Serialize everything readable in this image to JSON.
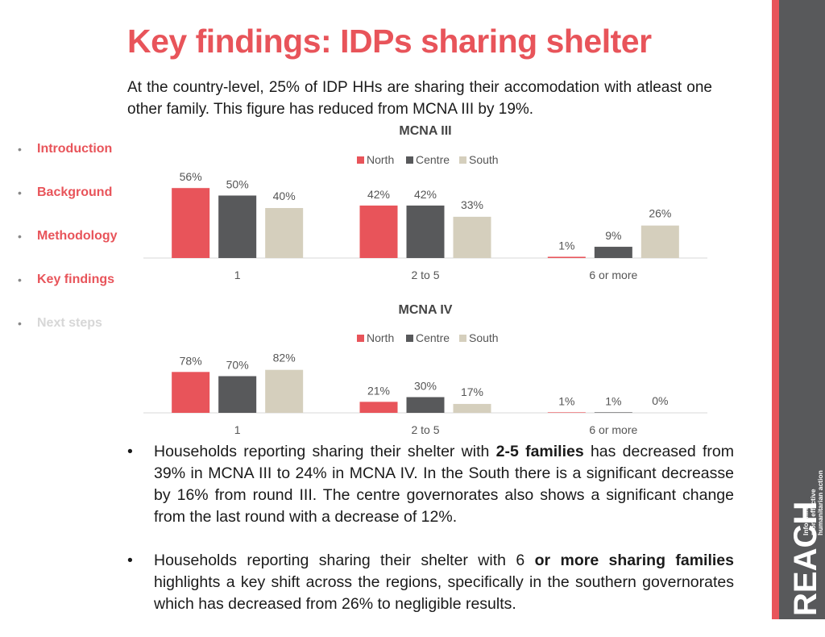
{
  "title": "Key findings: IDPs sharing shelter",
  "intro": "At the country-level, 25% of IDP HHs are sharing their accomodation with atleast one other family.  This figure has reduced from MCNA III by 19%.",
  "nav": {
    "items": [
      {
        "label": "Introduction"
      },
      {
        "label": "Background"
      },
      {
        "label": "Methodology"
      },
      {
        "label": "Key findings"
      },
      {
        "label": "Next steps"
      }
    ],
    "bullet": "•"
  },
  "colors": {
    "accent": "#e8545a",
    "north": "#e8545a",
    "centre": "#58595b",
    "south": "#d5cfbd",
    "sidebar": "#58595b"
  },
  "chart_data": [
    {
      "type": "bar",
      "title": "MCNA III",
      "categories": [
        "1",
        "2 to 5",
        "6 or more"
      ],
      "series": [
        {
          "name": "North",
          "values": [
            56,
            42,
            1
          ],
          "labels": [
            "56%",
            "42%",
            "1%"
          ]
        },
        {
          "name": "Centre",
          "values": [
            50,
            42,
            9
          ],
          "labels": [
            "50%",
            "42%",
            "9%"
          ]
        },
        {
          "name": "South",
          "values": [
            40,
            33,
            26
          ],
          "labels": [
            "40%",
            "33%",
            "26%"
          ]
        }
      ],
      "legend": "top",
      "grid": false,
      "ylim": [
        0,
        100
      ]
    },
    {
      "type": "bar",
      "title": "MCNA IV",
      "categories": [
        "1",
        "2 to 5",
        "6 or more"
      ],
      "series": [
        {
          "name": "North",
          "values": [
            78,
            21,
            1
          ],
          "labels": [
            "78%",
            "21%",
            "1%"
          ]
        },
        {
          "name": "Centre",
          "values": [
            70,
            30,
            1
          ],
          "labels": [
            "70%",
            "30%",
            "1%"
          ]
        },
        {
          "name": "South",
          "values": [
            82,
            17,
            0
          ],
          "labels": [
            "82%",
            "17%",
            "0%"
          ]
        }
      ],
      "legend": "top",
      "grid": false,
      "ylim": [
        0,
        100
      ]
    }
  ],
  "bullets": [
    {
      "before": "Households reporting sharing their shelter with ",
      "bold": "2-5 families",
      "after": " has decreased from 39% in MCNA III to 24% in MCNA IV. In the South there is a significant decreasse by 16% from round III. The centre governorates also shows a significant change from the last round with a decrease of 12%."
    },
    {
      "before": "Households reporting sharing their shelter with 6 ",
      "bold": "or more sharing families",
      "after": " highlights a key shift across the regions, specifically in the southern governorates which has decreased from 26% to negligible results."
    }
  ],
  "logo": {
    "name": "REACH",
    "tagline": [
      "Informing",
      "more effective",
      "humanitarian action"
    ]
  }
}
